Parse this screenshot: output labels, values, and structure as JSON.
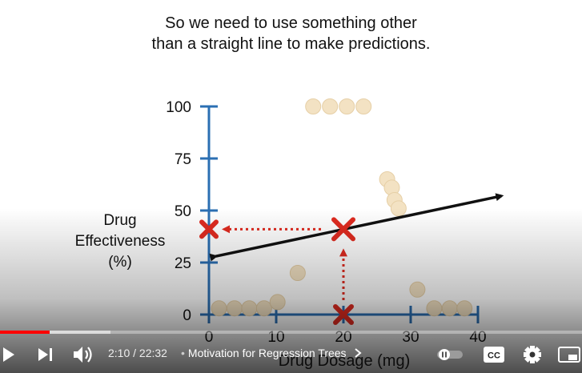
{
  "slide": {
    "caption_lines": [
      "So we need to use something other",
      "than a straight line to make predictions."
    ]
  },
  "chart_data": {
    "type": "scatter",
    "xlabel": "Drug Dosage (mg)",
    "ylabel_lines": [
      "Drug",
      "Effectiveness",
      "(%)"
    ],
    "x_ticks": [
      0,
      10,
      20,
      30,
      40
    ],
    "y_ticks": [
      0,
      25,
      50,
      75,
      100
    ],
    "xlim": [
      0,
      40
    ],
    "ylim": [
      0,
      100
    ],
    "points": [
      {
        "x": 1.5,
        "y": 3
      },
      {
        "x": 3.8,
        "y": 3
      },
      {
        "x": 6,
        "y": 3
      },
      {
        "x": 8.2,
        "y": 3
      },
      {
        "x": 10.2,
        "y": 6
      },
      {
        "x": 13.2,
        "y": 20
      },
      {
        "x": 15.5,
        "y": 100
      },
      {
        "x": 18,
        "y": 100
      },
      {
        "x": 20.5,
        "y": 100
      },
      {
        "x": 23,
        "y": 100
      },
      {
        "x": 26.5,
        "y": 65
      },
      {
        "x": 27.2,
        "y": 61
      },
      {
        "x": 27.6,
        "y": 55
      },
      {
        "x": 28.2,
        "y": 51
      },
      {
        "x": 31,
        "y": 12
      },
      {
        "x": 33.5,
        "y": 3
      },
      {
        "x": 35.8,
        "y": 3
      },
      {
        "x": 38,
        "y": 3
      }
    ],
    "point_color": "#f3e2c3",
    "regression_line": {
      "from": [
        1,
        28
      ],
      "to": [
        43.5,
        57
      ]
    },
    "prediction": {
      "x": 20,
      "y": 41
    },
    "marker_color": "#e02b20"
  },
  "player": {
    "time": "2:10 / 22:32",
    "chapter_separator": "•",
    "chapter": "Motivation for Regression Trees",
    "played_fraction": 0.085,
    "buffered_fraction": 0.19,
    "progress_color": "#ff0000",
    "icons": [
      "play-icon",
      "next-icon",
      "volume-icon",
      "chevron-right-icon",
      "autoplay-toggle-icon",
      "captions-icon",
      "settings-icon",
      "miniplayer-icon"
    ],
    "cc_label": "CC"
  }
}
